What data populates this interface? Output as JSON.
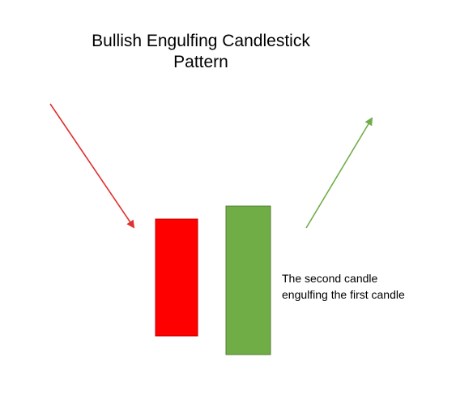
{
  "title": {
    "line1": "Bullish Engulfing Candlestick",
    "line2": "Pattern"
  },
  "annotation": {
    "line1": "The second candle",
    "line2": "engulfing the first candle"
  },
  "colors": {
    "bearish_candle": "#ff0000",
    "bearish_border": "#c00000",
    "bullish_candle": "#70ad47",
    "bullish_border": "#507e32",
    "down_arrow": "#e03030",
    "up_arrow": "#70ad47"
  },
  "icons": {
    "down_trend": "down-trend-arrow-icon",
    "up_trend": "up-trend-arrow-icon"
  }
}
